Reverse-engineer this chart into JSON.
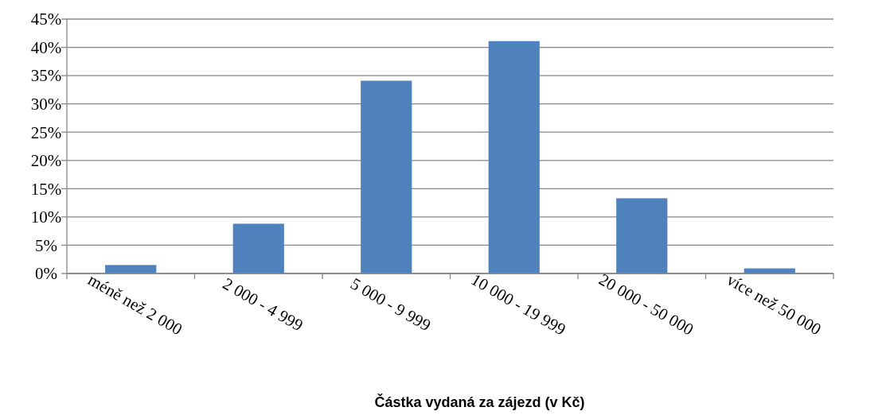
{
  "chart_data": {
    "type": "bar",
    "xlabel": "Částka vydaná za zájezd (v Kč)",
    "categories": [
      "méně než 2 000",
      "2 000 - 4 999",
      "5 000 - 9 999",
      "10 000 - 19 999",
      "20 000 - 50 000",
      "více než 50 000"
    ],
    "values": [
      1.5,
      8.8,
      34.1,
      41.1,
      13.3,
      0.9
    ],
    "color": "#4f81bd",
    "ylim": [
      0,
      45
    ],
    "yticks": [
      {
        "value": 0,
        "label": "0%"
      },
      {
        "value": 5,
        "label": "5%"
      },
      {
        "value": 10,
        "label": "10%"
      },
      {
        "value": 15,
        "label": "15%"
      },
      {
        "value": 20,
        "label": "20%"
      },
      {
        "value": 25,
        "label": "25%"
      },
      {
        "value": 30,
        "label": "30%"
      },
      {
        "value": 35,
        "label": "35%"
      },
      {
        "value": 40,
        "label": "40%"
      },
      {
        "value": 45,
        "label": "45%"
      }
    ],
    "grid": "y"
  }
}
